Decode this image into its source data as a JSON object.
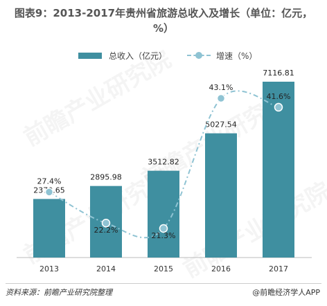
{
  "title": "图表9：2013-2017年贵州省旅游总收入及增长（单位：亿元，%）",
  "legend": {
    "bar_label": "总收入（亿元）",
    "line_label": "增速（%）"
  },
  "source": "资料来源：前瞻产业研究院整理",
  "brand": "@前瞻经济学人APP",
  "watermark": "前瞻产业研究院",
  "colors": {
    "bar": "#3f8fa0",
    "line": "#8fc3d3",
    "text": "#333333"
  },
  "chart_data": {
    "type": "bar",
    "categories": [
      "2013",
      "2014",
      "2015",
      "2016",
      "2017"
    ],
    "series": [
      {
        "name": "总收入（亿元）",
        "type": "bar",
        "values": [
          2370.65,
          2895.98,
          3512.82,
          5027.54,
          7116.81
        ],
        "labels": [
          "2370.65",
          "2895.98",
          "3512.82",
          "5027.54",
          "7116.81"
        ]
      },
      {
        "name": "增速（%）",
        "type": "line",
        "values": [
          27.4,
          22.2,
          21.3,
          43.1,
          41.6
        ],
        "labels": [
          "27.4%",
          "22.2%",
          "21.3%",
          "43.1%",
          "41.6%"
        ]
      }
    ],
    "title": "图表9：2013-2017年贵州省旅游总收入及增长（单位：亿元，%）",
    "xlabel": "",
    "ylabel": "",
    "grid": false,
    "legend_position": "top"
  }
}
